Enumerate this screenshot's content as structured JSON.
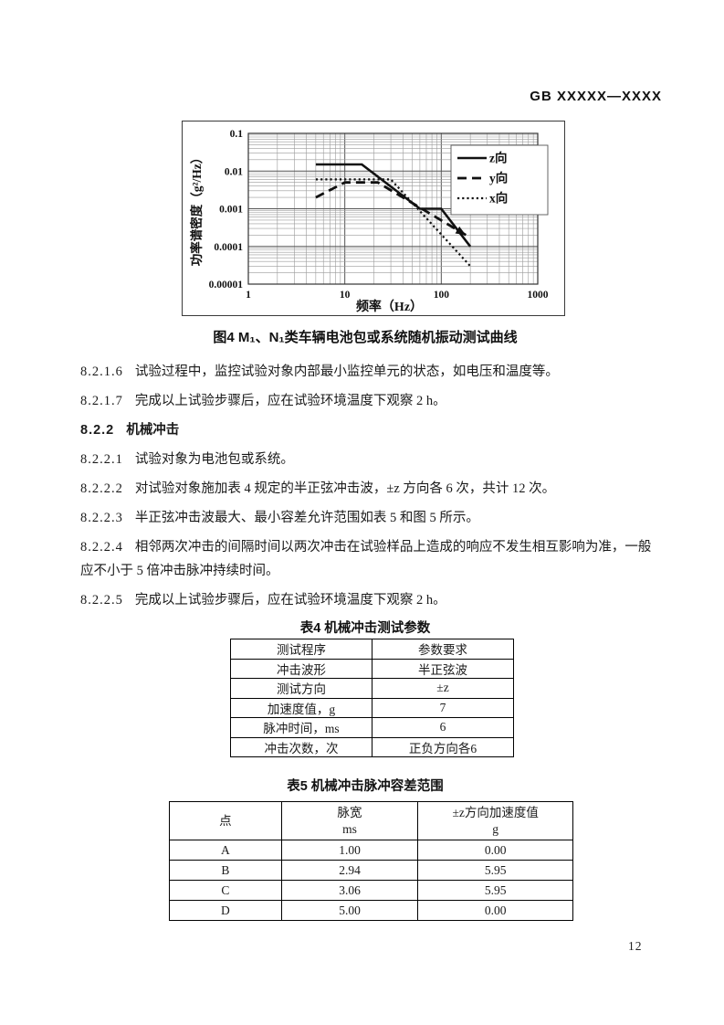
{
  "page": {
    "header": "GB XXXXX—XXXX",
    "page_number": "12"
  },
  "figure": {
    "caption": "图4 M₁、N₁类车辆电池包或系统随机振动测试曲线"
  },
  "chart_data": {
    "type": "line",
    "title": "",
    "xlabel": "频率（Hz）",
    "ylabel": "功率谱密度（g²/Hz）",
    "x_scale": "log",
    "y_scale": "log",
    "xlim": [
      1,
      1000
    ],
    "ylim": [
      1e-05,
      0.1
    ],
    "x_ticks": [
      "1",
      "10",
      "100",
      "1000"
    ],
    "y_ticks": [
      "0.1",
      "0.01",
      "0.001",
      "0.0001",
      "0.00001"
    ],
    "grid": true,
    "legend_position": "top-right",
    "series": [
      {
        "name": "z向",
        "style": "solid",
        "points": [
          [
            5,
            0.015
          ],
          [
            15,
            0.015
          ],
          [
            60,
            0.001
          ],
          [
            100,
            0.001
          ],
          [
            200,
            0.0001
          ]
        ]
      },
      {
        "name": "y向",
        "style": "dashed",
        "arrow_end": true,
        "points": [
          [
            5,
            0.002
          ],
          [
            10,
            0.005
          ],
          [
            22,
            0.005
          ],
          [
            180,
            0.0002
          ]
        ]
      },
      {
        "name": "x向",
        "style": "dotted",
        "points": [
          [
            5,
            0.006
          ],
          [
            30,
            0.006
          ],
          [
            200,
            3e-05
          ]
        ]
      }
    ]
  },
  "paragraphs": [
    {
      "num": "8.2.1.6",
      "text": "试验过程中，监控试验对象内部最小监控单元的状态，如电压和温度等。",
      "heading": false
    },
    {
      "num": "8.2.1.7",
      "text": "完成以上试验步骤后，应在试验环境温度下观察 2 h。",
      "heading": false
    },
    {
      "num": "8.2.2",
      "text": "机械冲击",
      "heading": true
    },
    {
      "num": "8.2.2.1",
      "text": "试验对象为电池包或系统。",
      "heading": false
    },
    {
      "num": "8.2.2.2",
      "text": "对试验对象施加表 4 规定的半正弦冲击波，±z 方向各 6 次，共计 12 次。",
      "heading": false
    },
    {
      "num": "8.2.2.3",
      "text": "半正弦冲击波最大、最小容差允许范围如表 5 和图 5 所示。",
      "heading": false
    },
    {
      "num": "8.2.2.4",
      "text": "相邻两次冲击的间隔时间以两次冲击在试验样品上造成的响应不发生相互影响为准，一般应不小于 5 倍冲击脉冲持续时间。",
      "heading": false
    },
    {
      "num": "8.2.2.5",
      "text": "完成以上试验步骤后，应在试验环境温度下观察 2 h。",
      "heading": false
    }
  ],
  "table4": {
    "title": "表4 机械冲击测试参数",
    "rows": [
      [
        "测试程序",
        "参数要求"
      ],
      [
        "冲击波形",
        "半正弦波"
      ],
      [
        "测试方向",
        "±z"
      ],
      [
        "加速度值，g",
        "7"
      ],
      [
        "脉冲时间，ms",
        "6"
      ],
      [
        "冲击次数，次",
        "正负方向各6"
      ]
    ]
  },
  "table5": {
    "title": "表5 机械冲击脉冲容差范围",
    "header": [
      {
        "label": "点",
        "unit": ""
      },
      {
        "label": "脉宽",
        "unit": "ms"
      },
      {
        "label": "±z方向加速度值",
        "unit": "g"
      }
    ],
    "rows": [
      [
        "A",
        "1.00",
        "0.00"
      ],
      [
        "B",
        "2.94",
        "5.95"
      ],
      [
        "C",
        "3.06",
        "5.95"
      ],
      [
        "D",
        "5.00",
        "0.00"
      ]
    ]
  }
}
